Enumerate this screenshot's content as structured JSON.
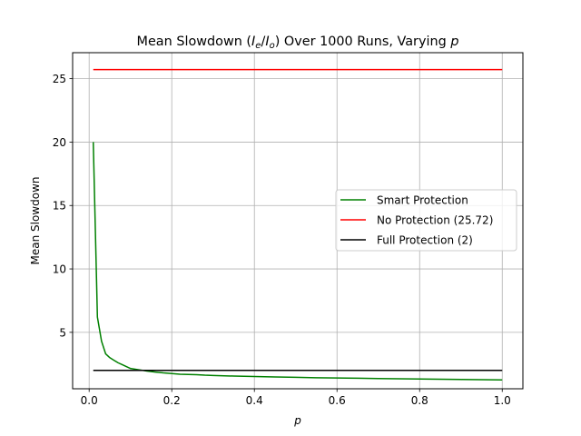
{
  "chart_data": {
    "type": "line",
    "title_main": "Mean Slowdown (",
    "title_ie": "I",
    "title_ie_sub": "e",
    "title_slash": "/",
    "title_io": "I",
    "title_io_sub": "o",
    "title_rest": ") Over 1000 Runs, Varying ",
    "title_p": "p",
    "xlabel": "p",
    "ylabel": "Mean Slowdown",
    "xlim": [
      -0.04,
      1.05
    ],
    "ylim": [
      0.55,
      27.05
    ],
    "xticks": [
      0.0,
      0.2,
      0.4,
      0.6,
      0.8,
      1.0
    ],
    "xtick_labels": [
      "0.0",
      "0.2",
      "0.4",
      "0.6",
      "0.8",
      "1.0"
    ],
    "yticks": [
      5,
      10,
      15,
      20,
      25
    ],
    "ytick_labels": [
      "5",
      "10",
      "15",
      "20",
      "25"
    ],
    "grid": true,
    "legend_placement": "center-right",
    "series": [
      {
        "name": "Smart Protection",
        "color": "#008000",
        "x": [
          0.01,
          0.02,
          0.03,
          0.04,
          0.05,
          0.06,
          0.07,
          0.08,
          0.09,
          0.1,
          0.12,
          0.14,
          0.16,
          0.18,
          0.2,
          0.22,
          0.24,
          0.26,
          0.28,
          0.3,
          0.35,
          0.4,
          0.45,
          0.5,
          0.55,
          0.6,
          0.65,
          0.7,
          0.75,
          0.8,
          0.85,
          0.9,
          0.95,
          1.0
        ],
        "y": [
          20.0,
          6.2,
          4.3,
          3.3,
          3.0,
          2.8,
          2.6,
          2.45,
          2.3,
          2.15,
          2.05,
          1.95,
          1.87,
          1.8,
          1.75,
          1.7,
          1.68,
          1.66,
          1.62,
          1.6,
          1.55,
          1.52,
          1.48,
          1.45,
          1.42,
          1.4,
          1.38,
          1.36,
          1.34,
          1.32,
          1.3,
          1.28,
          1.27,
          1.25
        ]
      },
      {
        "name": "No Protection (25.72)",
        "color": "#ff0000",
        "x": [
          0.01,
          1.0
        ],
        "y": [
          25.72,
          25.72
        ]
      },
      {
        "name": "Full Protection (2)",
        "color": "#000000",
        "x": [
          0.01,
          1.0
        ],
        "y": [
          2,
          2
        ]
      }
    ]
  }
}
